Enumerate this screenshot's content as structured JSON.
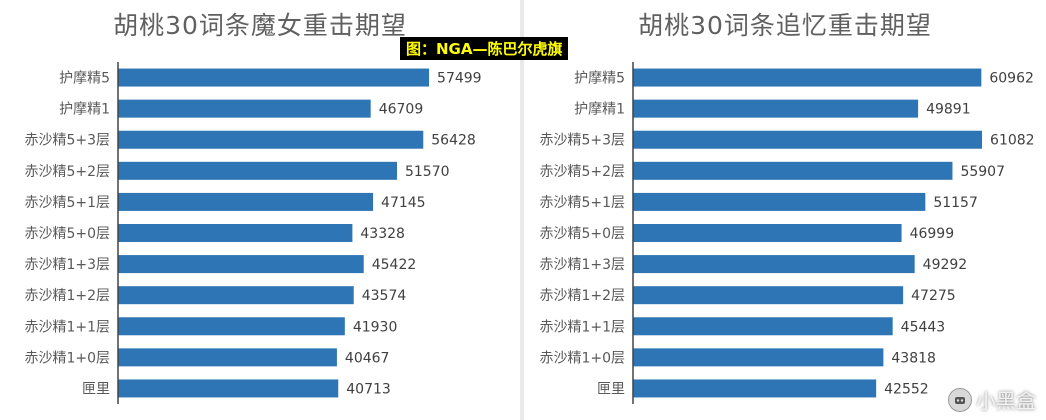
{
  "source_label": "图：NGA—陈巴尔虎旗",
  "watermark": "小黑盒",
  "colors": {
    "bar": "#2e75b6",
    "axis": "#444444",
    "label": "#595959",
    "value": "#404040"
  },
  "chart_data": [
    {
      "type": "bar",
      "orientation": "horizontal",
      "title": "胡桃30词条魔女重击期望",
      "categories": [
        "护摩精5",
        "护摩精1",
        "赤沙精5+3层",
        "赤沙精5+2层",
        "赤沙精5+1层",
        "赤沙精5+0层",
        "赤沙精1+3层",
        "赤沙精1+2层",
        "赤沙精1+1层",
        "赤沙精1+0层",
        "匣里"
      ],
      "values": [
        57499,
        46709,
        56428,
        51570,
        47145,
        43328,
        45422,
        43574,
        41930,
        40467,
        40713
      ],
      "xlim": [
        0,
        61000
      ],
      "grid": false,
      "legend": "none"
    },
    {
      "type": "bar",
      "orientation": "horizontal",
      "title": "胡桃30词条追忆重击期望",
      "categories": [
        "护摩精5",
        "护摩精1",
        "赤沙精5+3层",
        "赤沙精5+2层",
        "赤沙精5+1层",
        "赤沙精5+0层",
        "赤沙精1+3层",
        "赤沙精1+2层",
        "赤沙精1+1层",
        "赤沙精1+0层",
        "匣里"
      ],
      "values": [
        60962,
        49891,
        61082,
        55907,
        51157,
        46999,
        49292,
        47275,
        45443,
        43818,
        42552
      ],
      "xlim": [
        0,
        70000
      ],
      "grid": false,
      "legend": "none"
    }
  ]
}
